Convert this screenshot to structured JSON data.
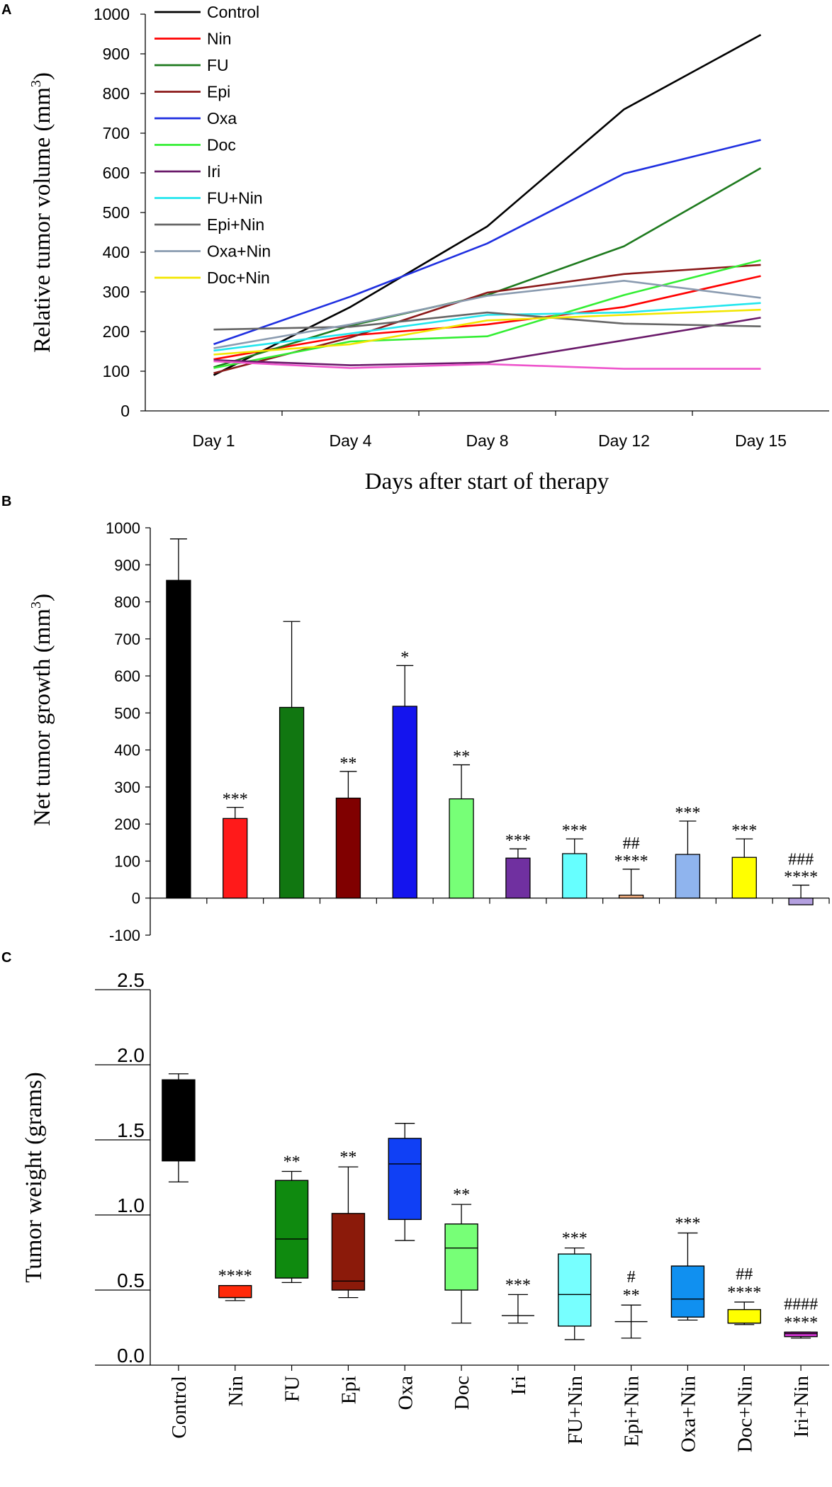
{
  "chart_data": [
    {
      "panel": "A",
      "type": "line",
      "title": "",
      "xlabel": "Days after start of therapy",
      "ylabel": "Relative tumor volume (mm3)",
      "ylabel_parts": [
        "Relative tumor volume (mm",
        "3",
        ")"
      ],
      "categories": [
        "Day 1",
        "Day 4",
        "Day 8",
        "Day 12",
        "Day 15"
      ],
      "ylim": [
        0,
        1000
      ],
      "yticks": [
        0,
        100,
        200,
        300,
        400,
        500,
        600,
        700,
        800,
        900,
        1000
      ],
      "legend_position": "top-left",
      "series": [
        {
          "name": "Control",
          "color": "#000000",
          "values": [
            90,
            262,
            465,
            760,
            948
          ],
          "in_legend": true
        },
        {
          "name": "Nin",
          "color": "#ff0000",
          "values": [
            130,
            190,
            218,
            262,
            340
          ],
          "in_legend": true
        },
        {
          "name": "FU",
          "color": "#1e7a1e",
          "values": [
            110,
            215,
            292,
            415,
            612
          ],
          "in_legend": true
        },
        {
          "name": "Epi",
          "color": "#8b1a1a",
          "values": [
            95,
            185,
            298,
            345,
            368
          ],
          "in_legend": true
        },
        {
          "name": "Oxa",
          "color": "#1f2fe0",
          "values": [
            168,
            288,
            422,
            598,
            683
          ],
          "in_legend": true
        },
        {
          "name": "Doc",
          "color": "#33ee33",
          "values": [
            108,
            175,
            188,
            292,
            380
          ],
          "in_legend": true
        },
        {
          "name": "Iri",
          "color": "#6a1a6a",
          "values": [
            128,
            115,
            122,
            178,
            235
          ],
          "in_legend": true
        },
        {
          "name": "FU+Nin",
          "color": "#22e6ee",
          "values": [
            152,
            195,
            242,
            248,
            272
          ],
          "in_legend": true
        },
        {
          "name": "Epi+Nin",
          "color": "#666666",
          "values": [
            205,
            212,
            248,
            220,
            213
          ],
          "in_legend": true
        },
        {
          "name": "Oxa+Nin",
          "color": "#8a9bb0",
          "values": [
            158,
            218,
            290,
            328,
            285
          ],
          "in_legend": true
        },
        {
          "name": "Doc+Nin",
          "color": "#f2e600",
          "values": [
            142,
            168,
            228,
            242,
            255
          ],
          "in_legend": true
        },
        {
          "name": "",
          "color": "#ee55cc",
          "values": [
            125,
            108,
            118,
            106,
            106
          ],
          "in_legend": false
        }
      ]
    },
    {
      "panel": "B",
      "type": "bar",
      "title": "",
      "xlabel": "",
      "ylabel": "Net tumor growth (mm3)",
      "ylabel_parts": [
        "Net tumor growth (mm",
        "3",
        ")"
      ],
      "categories": [
        "Control",
        "Nin",
        "FU",
        "Epi",
        "Oxa",
        "Doc",
        "Iri",
        "FU+Nin",
        "Epi+Nin",
        "Oxa+Nin",
        "Doc+Nin",
        "Iri+Nin"
      ],
      "values": [
        858,
        215,
        515,
        270,
        518,
        268,
        108,
        120,
        8,
        118,
        110,
        -18
      ],
      "errors": [
        112,
        30,
        232,
        72,
        110,
        92,
        25,
        40,
        70,
        90,
        50,
        35
      ],
      "colors": [
        "#000000",
        "#ff1a1a",
        "#117711",
        "#800000",
        "#1414ee",
        "#77ff77",
        "#7030a0",
        "#66ffff",
        "#f4b183",
        "#8fb4ee",
        "#ffff00",
        "#b4a0e0"
      ],
      "annotations": [
        {
          "category": "Nin",
          "lines": [
            "***"
          ]
        },
        {
          "category": "Epi",
          "lines": [
            "**"
          ]
        },
        {
          "category": "Oxa",
          "lines": [
            "*"
          ]
        },
        {
          "category": "Doc",
          "lines": [
            "**"
          ]
        },
        {
          "category": "Iri",
          "lines": [
            "***"
          ]
        },
        {
          "category": "FU+Nin",
          "lines": [
            "***"
          ]
        },
        {
          "category": "Epi+Nin",
          "lines": [
            "##",
            "****"
          ]
        },
        {
          "category": "Oxa+Nin",
          "lines": [
            "***"
          ]
        },
        {
          "category": "Doc+Nin",
          "lines": [
            "***"
          ]
        },
        {
          "category": "Iri+Nin",
          "lines": [
            "###",
            "****"
          ]
        }
      ],
      "ylim": [
        -100,
        1000
      ],
      "yticks": [
        -100,
        0,
        100,
        200,
        300,
        400,
        500,
        600,
        700,
        800,
        900,
        1000
      ]
    },
    {
      "panel": "C",
      "type": "box",
      "title": "",
      "xlabel": "",
      "ylabel": "Tumor weight (grams)",
      "categories": [
        "Control",
        "Nin",
        "FU",
        "Epi",
        "Oxa",
        "Doc",
        "Iri",
        "FU+Nin",
        "Epi+Nin",
        "Oxa+Nin",
        "Doc+Nin",
        "Iri+Nin"
      ],
      "boxes": [
        {
          "min": 1.22,
          "q1": 1.36,
          "median": 1.89,
          "q3": 1.9,
          "max": 1.94
        },
        {
          "min": 0.43,
          "q1": 0.45,
          "median": 0.45,
          "q3": 0.53,
          "max": 0.53
        },
        {
          "min": 0.55,
          "q1": 0.58,
          "median": 0.84,
          "q3": 1.23,
          "max": 1.29
        },
        {
          "min": 0.45,
          "q1": 0.5,
          "median": 0.56,
          "q3": 1.01,
          "max": 1.32
        },
        {
          "min": 0.83,
          "q1": 0.97,
          "median": 1.34,
          "q3": 1.51,
          "max": 1.61
        },
        {
          "min": 0.28,
          "q1": 0.5,
          "median": 0.78,
          "q3": 0.94,
          "max": 1.07
        },
        {
          "min": 0.28,
          "q1": 0.33,
          "median": 0.33,
          "q3": 0.33,
          "max": 0.47
        },
        {
          "min": 0.17,
          "q1": 0.26,
          "median": 0.47,
          "q3": 0.74,
          "max": 0.78
        },
        {
          "min": 0.18,
          "q1": 0.29,
          "median": 0.29,
          "q3": 0.29,
          "max": 0.4
        },
        {
          "min": 0.3,
          "q1": 0.32,
          "median": 0.44,
          "q3": 0.66,
          "max": 0.88
        },
        {
          "min": 0.27,
          "q1": 0.28,
          "median": 0.28,
          "q3": 0.37,
          "max": 0.42
        },
        {
          "min": 0.18,
          "q1": 0.19,
          "median": 0.21,
          "q3": 0.22,
          "max": 0.22
        }
      ],
      "colors": [
        "#000000",
        "#ff2a0a",
        "#0f8a0f",
        "#8b1a0a",
        "#1040f5",
        "#77ff77",
        "#ffffff",
        "#77ffff",
        "#ffffff",
        "#1090f0",
        "#ffff00",
        "#cc33cc"
      ],
      "annotations": [
        {
          "category": "FU",
          "lines": [
            "**"
          ]
        },
        {
          "category": "Epi",
          "lines": [
            "**"
          ]
        },
        {
          "category": "Doc",
          "lines": [
            "**"
          ]
        },
        {
          "category": "Nin",
          "lines": [
            "****"
          ]
        },
        {
          "category": "Iri",
          "lines": [
            "***"
          ]
        },
        {
          "category": "FU+Nin",
          "lines": [
            "***"
          ]
        },
        {
          "category": "Epi+Nin",
          "lines": [
            "#",
            "**"
          ]
        },
        {
          "category": "Oxa+Nin",
          "lines": [
            "***"
          ]
        },
        {
          "category": "Doc+Nin",
          "lines": [
            "##",
            "****"
          ]
        },
        {
          "category": "Iri+Nin",
          "lines": [
            "####",
            "****"
          ]
        }
      ],
      "ylim": [
        0.0,
        2.5
      ],
      "yticks": [
        "0.0",
        "0.5",
        "1.0",
        "1.5",
        "2.0",
        "2.5"
      ]
    }
  ]
}
